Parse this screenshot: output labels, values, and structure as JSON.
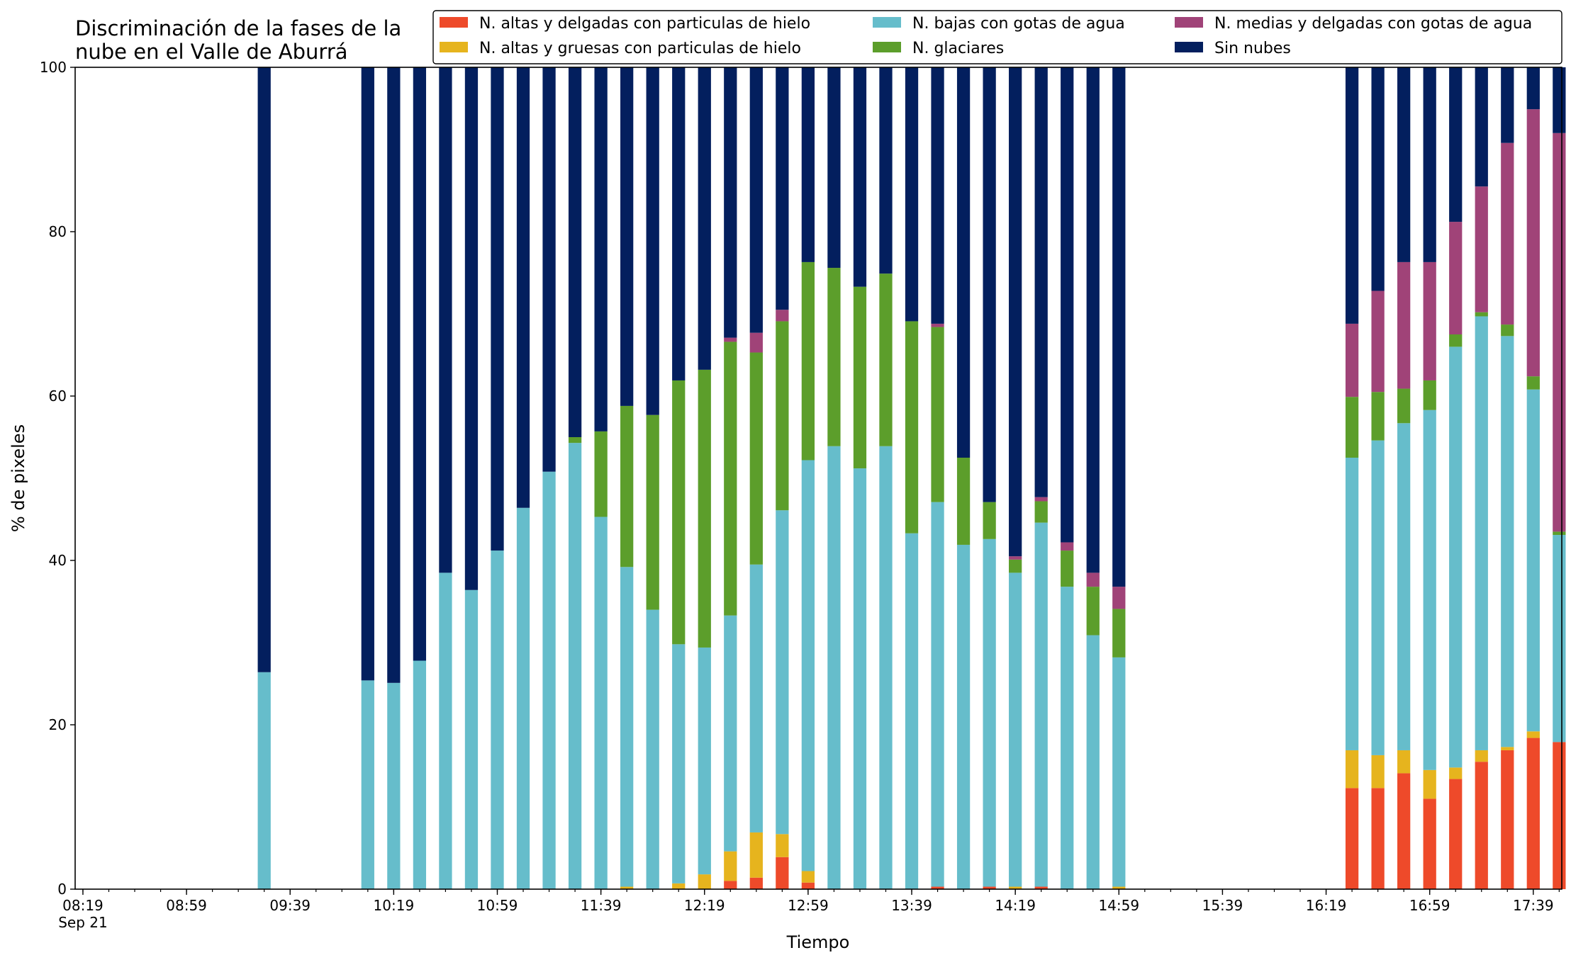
{
  "chart_data": {
    "type": "bar",
    "stacked": true,
    "title_lines": [
      "Discriminación de la fases de la",
      "nube en el Valle de Aburrá"
    ],
    "xlabel": "Tiempo",
    "ylabel": "% de pixeles",
    "ylim": [
      0,
      100
    ],
    "y_ticks": [
      0,
      20,
      40,
      60,
      80,
      100
    ],
    "x_range_minutes": [
      -3,
      571
    ],
    "x_ticks": [
      {
        "label": "08:19",
        "sub": "Sep 21",
        "minute": 0
      },
      {
        "label": "08:59",
        "minute": 40
      },
      {
        "label": "09:39",
        "minute": 80
      },
      {
        "label": "10:19",
        "minute": 120
      },
      {
        "label": "10:59",
        "minute": 160
      },
      {
        "label": "11:39",
        "minute": 200
      },
      {
        "label": "12:19",
        "minute": 240
      },
      {
        "label": "12:59",
        "minute": 280
      },
      {
        "label": "13:39",
        "minute": 320
      },
      {
        "label": "14:19",
        "minute": 360
      },
      {
        "label": "14:59",
        "minute": 400
      },
      {
        "label": "15:39",
        "minute": 440
      },
      {
        "label": "16:19",
        "minute": 480
      },
      {
        "label": "16:59",
        "minute": 520
      },
      {
        "label": "17:39",
        "minute": 560
      }
    ],
    "minor_tick_step_minutes": 10,
    "bar_width_minutes": 5,
    "legend_placement": "top-right",
    "series": [
      {
        "name": "N. altas y delgadas con particulas de hielo",
        "color": "#ee4a2a"
      },
      {
        "name": "N. altas y gruesas con particulas de hielo",
        "color": "#e6b41e"
      },
      {
        "name": "N. bajas con gotas de agua",
        "color": "#66bdcb"
      },
      {
        "name": "N. glaciares",
        "color": "#5c9e2b"
      },
      {
        "name": "N. medias y delgadas con gotas de agua",
        "color": "#a04378"
      },
      {
        "name": "Sin nubes",
        "color": "#031f5e"
      }
    ],
    "bars": [
      {
        "minute": 70,
        "values": [
          0,
          0,
          26.4,
          0,
          0,
          73.6
        ]
      },
      {
        "minute": 110,
        "values": [
          0,
          0,
          25.4,
          0,
          0,
          74.6
        ]
      },
      {
        "minute": 120,
        "values": [
          0,
          0,
          25.1,
          0,
          0,
          74.9
        ]
      },
      {
        "minute": 130,
        "values": [
          0,
          0,
          27.8,
          0,
          0,
          72.2
        ]
      },
      {
        "minute": 140,
        "values": [
          0,
          0,
          38.5,
          0,
          0,
          61.5
        ]
      },
      {
        "minute": 150,
        "values": [
          0,
          0,
          36.4,
          0,
          0,
          63.6
        ]
      },
      {
        "minute": 160,
        "values": [
          0,
          0,
          41.2,
          0,
          0,
          58.8
        ]
      },
      {
        "minute": 170,
        "values": [
          0,
          0,
          46.4,
          0,
          0,
          53.6
        ]
      },
      {
        "minute": 180,
        "values": [
          0,
          0,
          50.8,
          0,
          0,
          49.2
        ]
      },
      {
        "minute": 190,
        "values": [
          0,
          0,
          54.3,
          0.7,
          0,
          45.0
        ]
      },
      {
        "minute": 200,
        "values": [
          0,
          0,
          45.3,
          10.4,
          0,
          44.3
        ]
      },
      {
        "minute": 210,
        "values": [
          0,
          0.3,
          38.9,
          19.6,
          0,
          41.2
        ]
      },
      {
        "minute": 220,
        "values": [
          0,
          0,
          34.0,
          23.7,
          0,
          42.3
        ]
      },
      {
        "minute": 230,
        "values": [
          0,
          0.7,
          29.1,
          32.1,
          0,
          38.1
        ]
      },
      {
        "minute": 240,
        "values": [
          0,
          1.8,
          27.6,
          33.8,
          0,
          36.8
        ]
      },
      {
        "minute": 250,
        "values": [
          1.0,
          3.6,
          28.7,
          33.3,
          0.5,
          32.9
        ]
      },
      {
        "minute": 260,
        "values": [
          1.4,
          5.5,
          32.6,
          25.8,
          2.4,
          32.3
        ]
      },
      {
        "minute": 270,
        "values": [
          3.9,
          2.8,
          39.4,
          23.0,
          1.4,
          29.5
        ]
      },
      {
        "minute": 280,
        "values": [
          0.8,
          1.4,
          50.0,
          24.1,
          0,
          23.7
        ]
      },
      {
        "minute": 290,
        "values": [
          0,
          0,
          53.9,
          21.7,
          0,
          24.4
        ]
      },
      {
        "minute": 300,
        "values": [
          0,
          0,
          51.2,
          22.1,
          0,
          26.7
        ]
      },
      {
        "minute": 310,
        "values": [
          0,
          0,
          53.9,
          21.0,
          0,
          25.1
        ]
      },
      {
        "minute": 320,
        "values": [
          0,
          0,
          43.3,
          25.8,
          0,
          30.9
        ]
      },
      {
        "minute": 330,
        "values": [
          0.3,
          0,
          46.8,
          21.3,
          0.4,
          31.2
        ]
      },
      {
        "minute": 340,
        "values": [
          0,
          0,
          41.9,
          10.6,
          0,
          47.5
        ]
      },
      {
        "minute": 350,
        "values": [
          0.3,
          0,
          42.3,
          4.5,
          0,
          52.9
        ]
      },
      {
        "minute": 360,
        "values": [
          0,
          0.3,
          38.2,
          1.6,
          0.4,
          59.5
        ]
      },
      {
        "minute": 370,
        "values": [
          0.3,
          0,
          44.3,
          2.6,
          0.5,
          52.3
        ]
      },
      {
        "minute": 380,
        "values": [
          0,
          0,
          36.8,
          4.4,
          1.0,
          57.8
        ]
      },
      {
        "minute": 390,
        "values": [
          0,
          0,
          30.9,
          5.9,
          1.7,
          61.5
        ]
      },
      {
        "minute": 400,
        "values": [
          0,
          0.3,
          27.9,
          5.9,
          2.7,
          63.2
        ]
      },
      {
        "minute": 490,
        "values": [
          12.3,
          4.6,
          35.6,
          7.4,
          8.9,
          31.2
        ]
      },
      {
        "minute": 500,
        "values": [
          12.3,
          4.0,
          38.3,
          5.9,
          12.3,
          27.2
        ]
      },
      {
        "minute": 510,
        "values": [
          14.1,
          2.8,
          39.8,
          4.2,
          15.4,
          23.7
        ]
      },
      {
        "minute": 520,
        "values": [
          11.0,
          3.5,
          43.8,
          3.6,
          14.4,
          23.7
        ]
      },
      {
        "minute": 530,
        "values": [
          13.4,
          1.4,
          51.2,
          1.5,
          13.7,
          18.8
        ]
      },
      {
        "minute": 540,
        "values": [
          15.5,
          1.4,
          52.8,
          0.5,
          15.3,
          14.5
        ]
      },
      {
        "minute": 550,
        "values": [
          16.9,
          0.4,
          50.0,
          1.4,
          22.1,
          9.2
        ]
      },
      {
        "minute": 560,
        "values": [
          18.4,
          0.8,
          41.6,
          1.6,
          32.5,
          5.1
        ]
      },
      {
        "minute": 570,
        "values": [
          17.9,
          0,
          25.2,
          0.4,
          48.5,
          8.0
        ]
      }
    ]
  }
}
